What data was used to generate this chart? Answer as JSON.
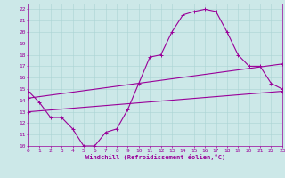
{
  "xlabel": "Windchill (Refroidissement éolien,°C)",
  "xlim": [
    0,
    23
  ],
  "ylim": [
    10,
    22.5
  ],
  "xticks": [
    0,
    1,
    2,
    3,
    4,
    5,
    6,
    7,
    8,
    9,
    10,
    11,
    12,
    13,
    14,
    15,
    16,
    17,
    18,
    19,
    20,
    21,
    22,
    23
  ],
  "yticks": [
    10,
    11,
    12,
    13,
    14,
    15,
    16,
    17,
    18,
    19,
    20,
    21,
    22
  ],
  "bg_color": "#cce8e8",
  "line_color": "#990099",
  "grid_color": "#aad4d4",
  "curve1_x": [
    0,
    1,
    2,
    3,
    4,
    5,
    6,
    7,
    8,
    9,
    10,
    11,
    12,
    13,
    14,
    15,
    16,
    17,
    18,
    19,
    20,
    21,
    22,
    23
  ],
  "curve1_y": [
    14.8,
    13.8,
    12.5,
    12.5,
    11.5,
    10.0,
    10.0,
    11.2,
    11.5,
    13.2,
    15.5,
    17.8,
    18.0,
    20.0,
    21.5,
    21.8,
    22.0,
    21.8,
    20.0,
    18.0,
    17.0,
    17.0,
    15.5,
    15.0
  ],
  "curve2_x": [
    0,
    23
  ],
  "curve2_y": [
    14.2,
    17.2
  ],
  "curve3_x": [
    0,
    23
  ],
  "curve3_y": [
    13.0,
    14.8
  ],
  "marker": "+",
  "markersize": 3,
  "linewidth": 0.8
}
